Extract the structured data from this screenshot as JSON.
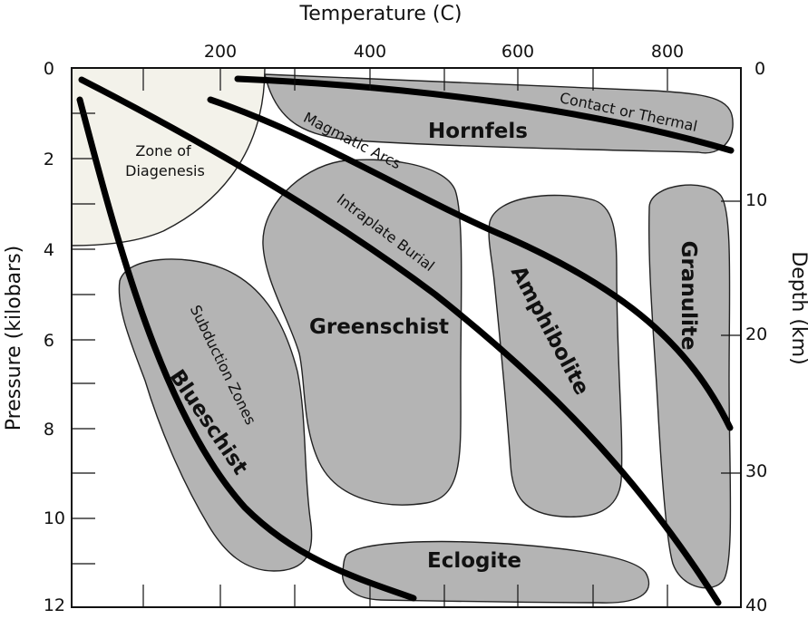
{
  "axes": {
    "top_title": "Temperature (C)",
    "left_title": "Pressure (kilobars)",
    "right_title": "Depth (km)",
    "temperature_ticks": [
      "200",
      "400",
      "600",
      "800"
    ],
    "pressure_ticks": [
      "0",
      "2",
      "4",
      "6",
      "8",
      "10",
      "12"
    ],
    "depth_ticks": [
      "0",
      "10",
      "20",
      "30",
      "40"
    ]
  },
  "regions": {
    "diagenesis_line1": "Zone of",
    "diagenesis_line2": "Diagenesis",
    "hornfels": "Hornfels",
    "greenschist": "Greenschist",
    "amphibolite": "Amphibolite",
    "granulite": "Granulite",
    "blueschist": "Blueschist",
    "eclogite": "Eclogite"
  },
  "gradients": {
    "contact": "Contact or Thermal",
    "magmatic": "Magmatic Arcs",
    "intraplate": "Intraplate Burial",
    "subduction": "Subduction Zones"
  },
  "colors": {
    "facies_fill": "#b4b4b4",
    "diagenesis_fill": "#f3f2ea",
    "gradient_stroke": "#000000"
  }
}
